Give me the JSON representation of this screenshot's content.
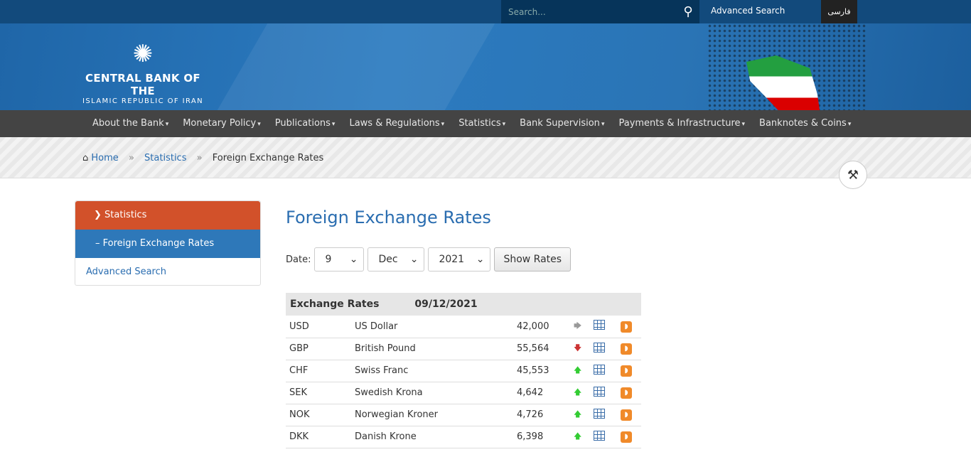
{
  "topbar": {
    "search_placeholder": "Search...",
    "advanced_search": "Advanced Search",
    "language": "فارسی"
  },
  "logo": {
    "line1": "CENTRAL BANK OF THE",
    "line2": "ISLAMIC REPUBLIC OF IRAN"
  },
  "nav": [
    "About the Bank",
    "Monetary Policy",
    "Publications",
    "Laws & Regulations",
    "Statistics",
    "Bank Supervision",
    "Payments & Infrastructure",
    "Banknotes & Coins"
  ],
  "breadcrumb": {
    "home": "Home",
    "statistics": "Statistics",
    "current": "Foreign Exchange Rates",
    "separator": "»"
  },
  "sidebar": {
    "statistics": "Statistics",
    "fx": "Foreign Exchange Rates",
    "advanced": "Advanced Search"
  },
  "main": {
    "title": "Foreign Exchange Rates",
    "date_label": "Date:",
    "day": "9",
    "month": "Dec",
    "year": "2021",
    "show_button": "Show Rates"
  },
  "table": {
    "header": "Exchange Rates",
    "date": "09/12/2021",
    "rows": [
      {
        "code": "USD",
        "name": "US Dollar",
        "rate": "42,000",
        "trend": "unchanged"
      },
      {
        "code": "GBP",
        "name": "British Pound",
        "rate": "55,564",
        "trend": "down"
      },
      {
        "code": "CHF",
        "name": "Swiss Franc",
        "rate": "45,553",
        "trend": "up"
      },
      {
        "code": "SEK",
        "name": "Swedish Krona",
        "rate": "4,642",
        "trend": "up"
      },
      {
        "code": "NOK",
        "name": "Norwegian Kroner",
        "rate": "4,726",
        "trend": "up"
      },
      {
        "code": "DKK",
        "name": "Danish Krone",
        "rate": "6,398",
        "trend": "up"
      }
    ]
  },
  "colors": {
    "accent": "#2a6db0",
    "sidebar_active": "#d2512a",
    "nav_bg": "#444444",
    "up": "#33cc33",
    "down": "#cc3333"
  }
}
